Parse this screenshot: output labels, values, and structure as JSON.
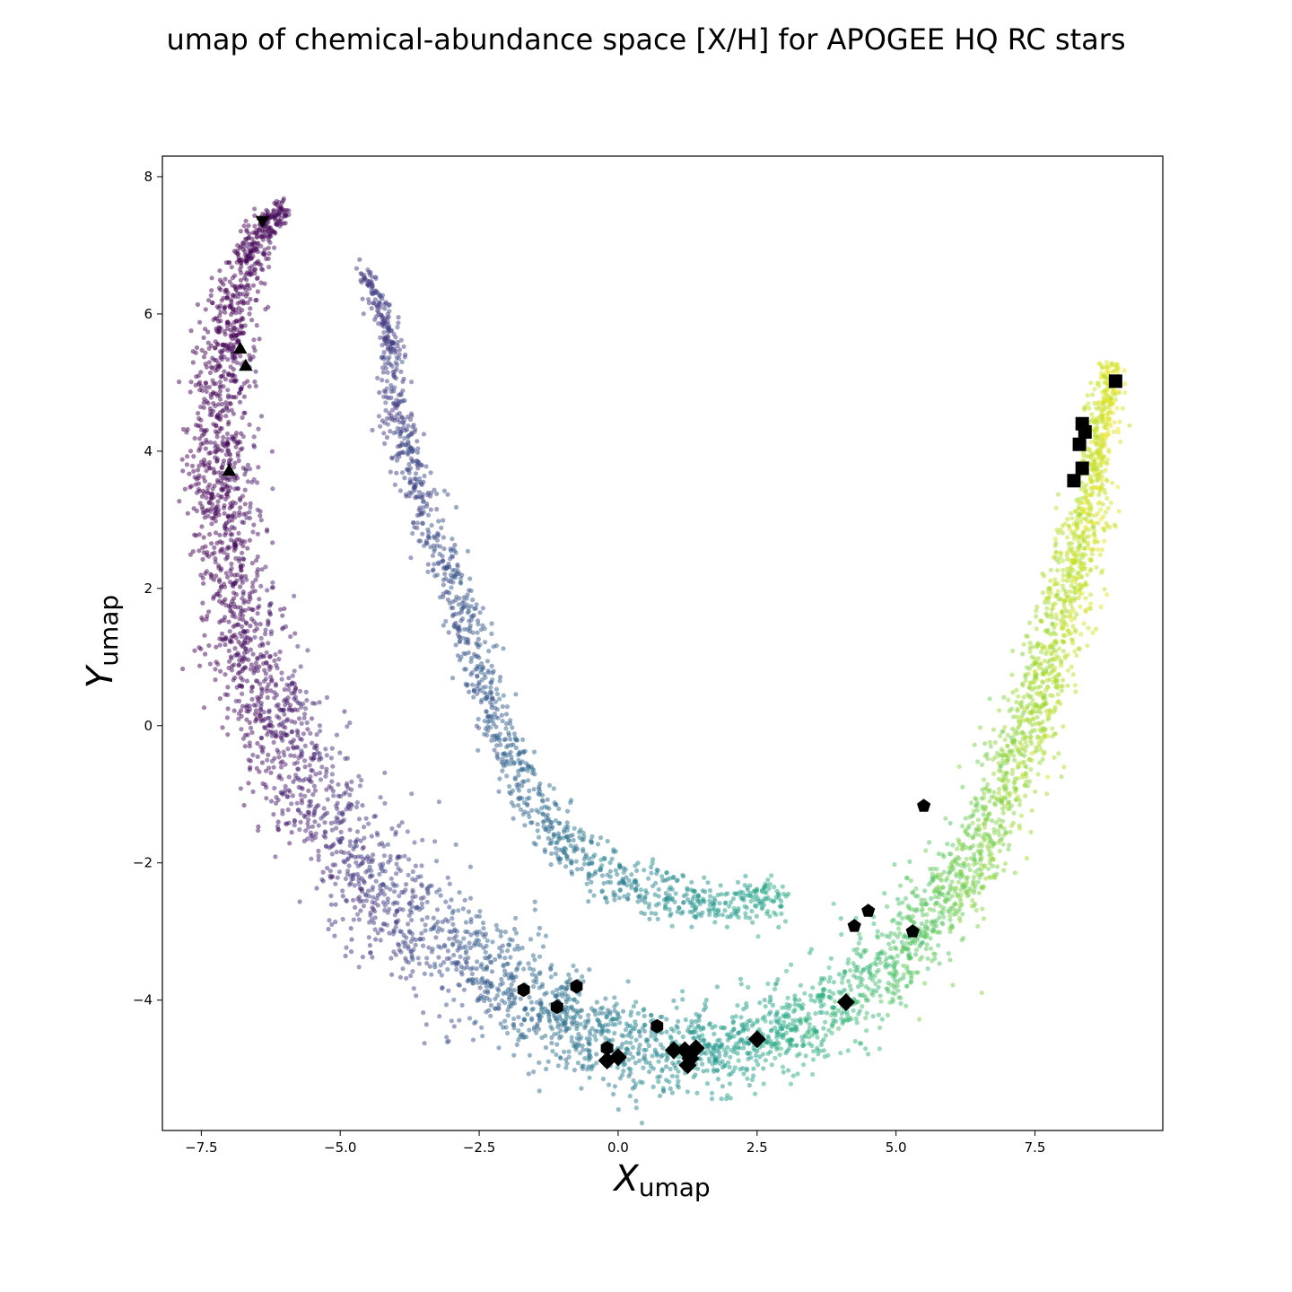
{
  "chart_data": {
    "type": "scatter",
    "title": "umap of chemical-abundance space [X/H] for APOGEE HQ RC stars",
    "xlabel": {
      "main": "X",
      "sub": "umap"
    },
    "ylabel": {
      "main": "Y",
      "sub": "umap"
    },
    "xlim": [
      -8.2,
      9.8
    ],
    "ylim": [
      -5.9,
      8.3
    ],
    "xticks": [
      -7.5,
      -5.0,
      -2.5,
      0.0,
      2.5,
      5.0,
      7.5
    ],
    "xtick_labels": [
      "−7.5",
      "−5.0",
      "−2.5",
      "0.0",
      "2.5",
      "5.0",
      "7.5"
    ],
    "yticks": [
      -4,
      -2,
      0,
      2,
      4,
      6,
      8
    ],
    "ytick_labels": [
      "−4",
      "−2",
      "0",
      "2",
      "4",
      "6",
      "8"
    ],
    "grid": false,
    "legend": "none",
    "colormap": "viridis",
    "background_cloud": {
      "description_points": "dense crescent of ~20000 stars, colour mapped by X position",
      "outer_arm": [
        [
          -6.0,
          7.6
        ],
        [
          -6.6,
          7.0
        ],
        [
          -7.0,
          5.8
        ],
        [
          -7.2,
          4.5
        ],
        [
          -7.1,
          3.0
        ],
        [
          -6.8,
          1.5
        ],
        [
          -6.2,
          0.0
        ],
        [
          -5.2,
          -1.5
        ],
        [
          -3.8,
          -2.8
        ],
        [
          -2.0,
          -3.8
        ],
        [
          -0.2,
          -4.6
        ],
        [
          1.5,
          -4.8
        ],
        [
          3.0,
          -4.5
        ],
        [
          4.5,
          -3.8
        ],
        [
          5.7,
          -2.8
        ],
        [
          6.8,
          -1.4
        ],
        [
          7.6,
          0.5
        ],
        [
          8.2,
          2.2
        ],
        [
          8.6,
          3.8
        ],
        [
          8.9,
          5.3
        ]
      ],
      "outer_width": [
        0.15,
        0.25,
        0.45,
        0.5,
        0.55,
        0.65,
        0.75,
        0.8,
        0.8,
        0.75,
        0.6,
        0.55,
        0.55,
        0.6,
        0.6,
        0.5,
        0.45,
        0.4,
        0.3,
        0.2
      ],
      "inner_arm": [
        [
          -4.6,
          6.7
        ],
        [
          -4.1,
          5.7
        ],
        [
          -4.0,
          4.7
        ],
        [
          -3.6,
          3.3
        ],
        [
          -3.0,
          2.2
        ],
        [
          -2.6,
          1.0
        ],
        [
          -2.1,
          -0.2
        ],
        [
          -1.4,
          -1.3
        ],
        [
          -0.6,
          -2.0
        ],
        [
          0.5,
          -2.4
        ],
        [
          1.7,
          -2.6
        ],
        [
          3.0,
          -2.5
        ]
      ],
      "inner_width": [
        0.08,
        0.2,
        0.25,
        0.28,
        0.28,
        0.3,
        0.3,
        0.35,
        0.35,
        0.35,
        0.3,
        0.3
      ]
    },
    "series": [
      {
        "name": "",
        "marker": "triangle-down",
        "color": "#000000",
        "points": [
          [
            -6.4,
            7.35
          ]
        ]
      },
      {
        "name": "",
        "marker": "triangle-up",
        "color": "#000000",
        "points": [
          [
            -6.8,
            5.5
          ],
          [
            -6.7,
            5.25
          ],
          [
            -7.0,
            3.72
          ]
        ]
      },
      {
        "name": "",
        "marker": "square",
        "color": "#000000",
        "points": [
          [
            8.95,
            5.02
          ],
          [
            8.35,
            4.4
          ],
          [
            8.4,
            4.28
          ],
          [
            8.3,
            4.1
          ],
          [
            8.35,
            3.75
          ],
          [
            8.2,
            3.57
          ]
        ]
      },
      {
        "name": "",
        "marker": "pentagon",
        "color": "#000000",
        "points": [
          [
            5.5,
            -1.17
          ],
          [
            4.5,
            -2.7
          ],
          [
            4.25,
            -2.92
          ],
          [
            5.3,
            -3.0
          ]
        ]
      },
      {
        "name": "",
        "marker": "hexagon",
        "color": "#000000",
        "points": [
          [
            -1.7,
            -3.85
          ],
          [
            -0.75,
            -3.8
          ],
          [
            -1.1,
            -4.1
          ],
          [
            0.7,
            -4.38
          ],
          [
            -0.2,
            -4.7
          ]
        ]
      },
      {
        "name": "",
        "marker": "diamond",
        "color": "#000000",
        "points": [
          [
            4.1,
            -4.03
          ],
          [
            2.5,
            -4.57
          ],
          [
            1.0,
            -4.73
          ],
          [
            1.2,
            -4.73
          ],
          [
            1.4,
            -4.7
          ],
          [
            1.3,
            -4.85
          ],
          [
            1.25,
            -4.95
          ],
          [
            0.0,
            -4.83
          ],
          [
            -0.2,
            -4.88
          ]
        ]
      }
    ]
  }
}
